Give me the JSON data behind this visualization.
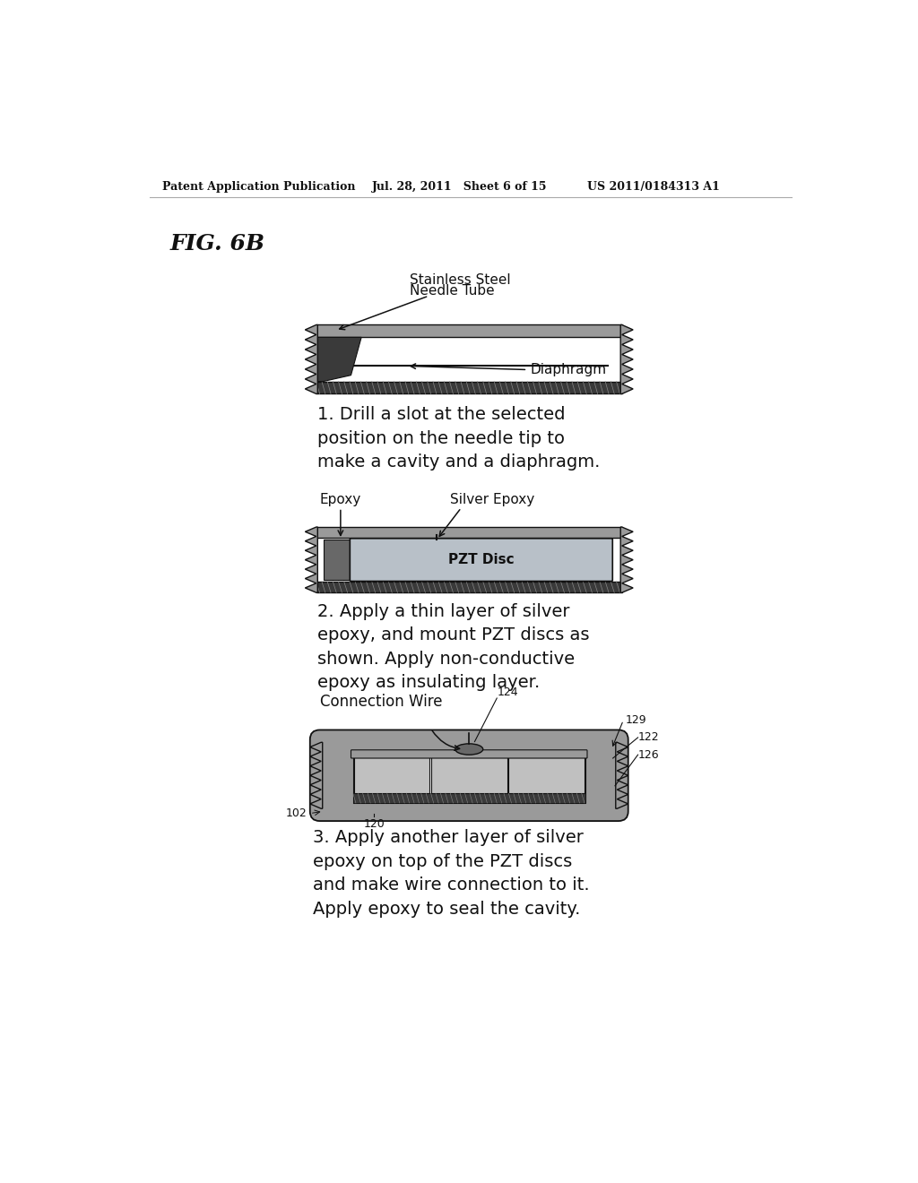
{
  "bg_color": "#ffffff",
  "header_left": "Patent Application Publication",
  "header_mid": "Jul. 28, 2011   Sheet 6 of 15",
  "header_right": "US 2011/0184313 A1",
  "fig_label": "FIG. 6B",
  "d1_label1": "Stainless Steel\nNeedle Tube",
  "d1_label2": "Diaphragm",
  "d1_desc": "1. Drill a slot at the selected\nposition on the needle tip to\nmake a cavity and a diaphragm.",
  "d2_label1": "Epoxy",
  "d2_label2": "Silver Epoxy",
  "d2_label3": "PZT Disc",
  "d2_desc": "2. Apply a thin layer of silver\nepoxy, and mount PZT discs as\nshown. Apply non-conductive\nepoxy as insulating layer.",
  "d3_label_wire": "Connection Wire",
  "d3_120": "120",
  "d3_124": "124",
  "d3_129": "129",
  "d3_122": "122",
  "d3_126": "126",
  "d3_102": "102",
  "d3_desc": "3. Apply another layer of silver\nepoxy on top of the PZT discs\nand make wire connection to it.\nApply epoxy to seal the cavity.",
  "c_bg": "#ffffff",
  "c_gray_light": "#c0c0c0",
  "c_gray_mid": "#9a9a9a",
  "c_gray_dark": "#686868",
  "c_gray_darker": "#3a3a3a",
  "c_black": "#111111",
  "c_pzt_fill": "#b8c0c8",
  "c_tube_fill": "#b0b0b0",
  "header_fs": 9,
  "fig_fs": 16,
  "label_fs": 11,
  "desc_fs": 14,
  "num_fs": 9
}
